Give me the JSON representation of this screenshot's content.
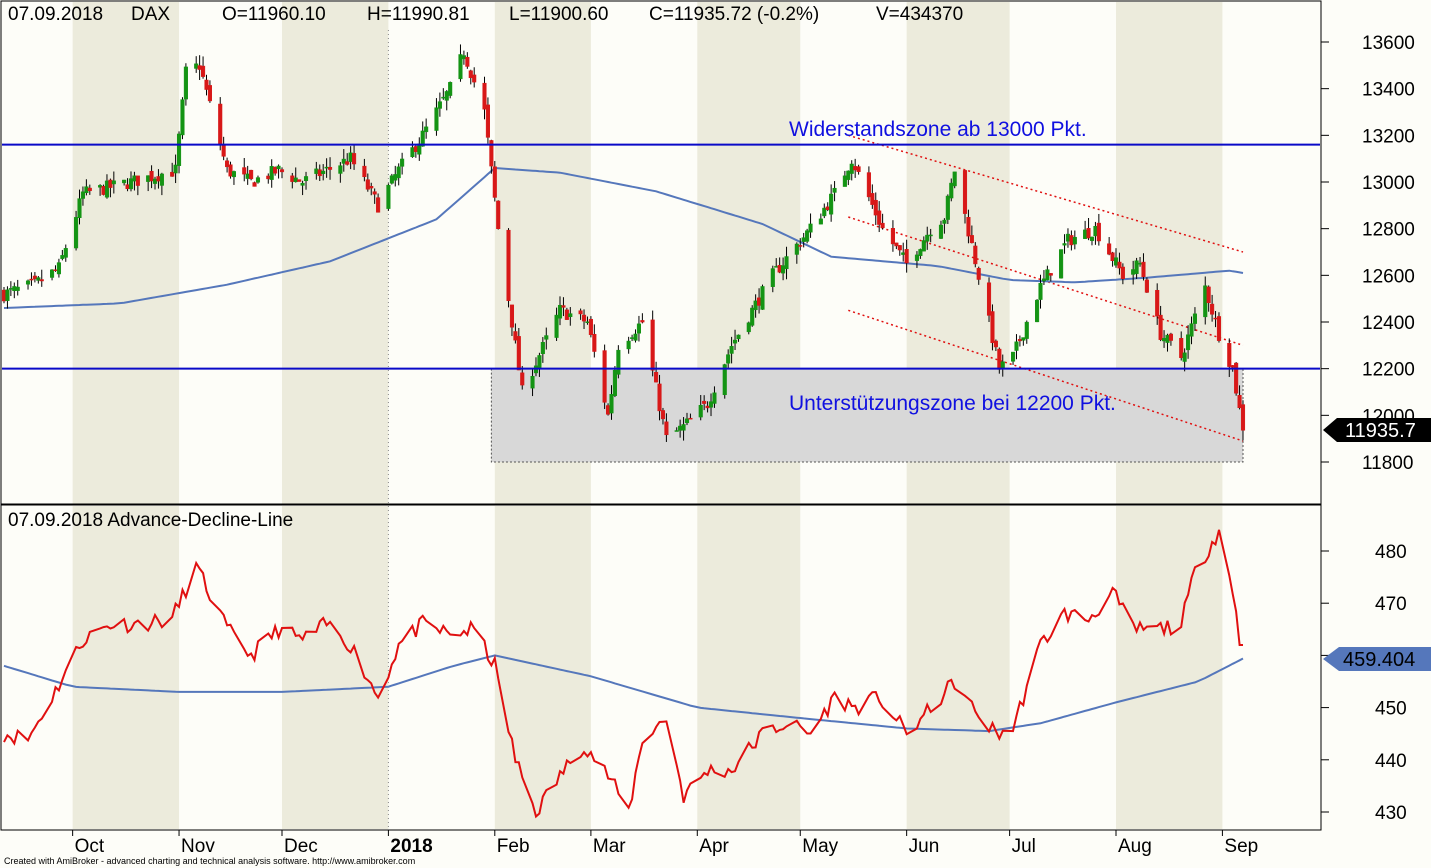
{
  "panel_top": {
    "header_date": "07.09.2018",
    "header_symbol": "DAX",
    "open": "O=11960.10",
    "high": "H=11990.81",
    "low": "L=11900.60",
    "close": "C=11935.72 (-0.2%)",
    "volume": "V=434370",
    "last_tag": "11935.7",
    "annotation_resistance": "Widerstandszone ab 13000 Pkt.",
    "annotation_support": "Unterstützungszone bei 12200 Pkt."
  },
  "panel_bottom": {
    "header": "07.09.2018 Advance-Decline-Line",
    "last_tag": "459.404"
  },
  "x_axis": {
    "labels": [
      "Oct",
      "Nov",
      "Dec",
      "2018",
      "Feb",
      "Mar",
      "Apr",
      "May",
      "Jun",
      "Jul",
      "Aug",
      "Sep"
    ]
  },
  "credit": "Created with AmiBroker - advanced charting and technical analysis software. http://www.amibroker.com",
  "colors": {
    "background": "#fdfdf8",
    "band": "#ecebdc",
    "up": "#149414",
    "down": "#d81818",
    "ma": "#5577bb",
    "adl": "#e01010",
    "level": "#0a0ac8",
    "channel": "#e01010",
    "support_zone": "#d8d8d8"
  },
  "chart_data": [
    {
      "type": "candlestick",
      "title": "DAX",
      "y_ticks": [
        11800,
        12000,
        12200,
        12400,
        12600,
        12800,
        13000,
        13200,
        13400,
        13600
      ],
      "ylim": [
        11620,
        13720
      ],
      "x_start": "2017-09-11",
      "x_end": "2018-09-07",
      "horizontal_levels": [
        13160,
        12200
      ],
      "support_zone": {
        "x_from": "2018-01-31",
        "x_to": "2018-09-07",
        "y_from": 11800,
        "y_to": 12200
      },
      "channel_lines": [
        {
          "x0": "2018-05-15",
          "y0": 13200,
          "x1": "2018-09-07",
          "y1": 12700
        },
        {
          "x0": "2018-05-15",
          "y0": 12850,
          "x1": "2018-09-07",
          "y1": 12300
        },
        {
          "x0": "2018-05-15",
          "y0": 12450,
          "x1": "2018-09-07",
          "y1": 11890
        }
      ],
      "close_anchors": [
        [
          "2017-09-11",
          12520
        ],
        [
          "2017-09-20",
          12560
        ],
        [
          "2017-09-27",
          12630
        ],
        [
          "2017-10-04",
          12950
        ],
        [
          "2017-10-18",
          13000
        ],
        [
          "2017-10-31",
          13050
        ],
        [
          "2017-11-03",
          13470
        ],
        [
          "2017-11-07",
          13500
        ],
        [
          "2017-11-15",
          13050
        ],
        [
          "2017-11-22",
          13000
        ],
        [
          "2017-11-30",
          13050
        ],
        [
          "2017-12-07",
          13000
        ],
        [
          "2017-12-14",
          13050
        ],
        [
          "2017-12-21",
          13100
        ],
        [
          "2017-12-29",
          12900
        ],
        [
          "2018-01-04",
          13050
        ],
        [
          "2018-01-11",
          13200
        ],
        [
          "2018-01-19",
          13400
        ],
        [
          "2018-01-23",
          13560
        ],
        [
          "2018-01-29",
          13300
        ],
        [
          "2018-02-02",
          12800
        ],
        [
          "2018-02-06",
          12400
        ],
        [
          "2018-02-09",
          12100
        ],
        [
          "2018-02-20",
          12450
        ],
        [
          "2018-02-28",
          12400
        ],
        [
          "2018-03-06",
          12000
        ],
        [
          "2018-03-09",
          12300
        ],
        [
          "2018-03-16",
          12400
        ],
        [
          "2018-03-23",
          11900
        ],
        [
          "2018-03-28",
          11950
        ],
        [
          "2018-04-04",
          12050
        ],
        [
          "2018-04-11",
          12300
        ],
        [
          "2018-04-23",
          12600
        ],
        [
          "2018-05-04",
          12800
        ],
        [
          "2018-05-11",
          12950
        ],
        [
          "2018-05-16",
          13100
        ],
        [
          "2018-05-25",
          12800
        ],
        [
          "2018-06-01",
          12650
        ],
        [
          "2018-06-08",
          12800
        ],
        [
          "2018-06-12",
          12850
        ],
        [
          "2018-06-15",
          13050
        ],
        [
          "2018-06-22",
          12600
        ],
        [
          "2018-06-28",
          12200
        ],
        [
          "2018-07-02",
          12250
        ],
        [
          "2018-07-10",
          12550
        ],
        [
          "2018-07-18",
          12750
        ],
        [
          "2018-07-26",
          12800
        ],
        [
          "2018-08-03",
          12600
        ],
        [
          "2018-08-08",
          12650
        ],
        [
          "2018-08-14",
          12350
        ],
        [
          "2018-08-20",
          12250
        ],
        [
          "2018-08-27",
          12550
        ],
        [
          "2018-08-31",
          12350
        ],
        [
          "2018-09-04",
          12200
        ],
        [
          "2018-09-07",
          11936
        ]
      ],
      "ma_anchors": [
        [
          "2017-09-11",
          12460
        ],
        [
          "2017-10-15",
          12480
        ],
        [
          "2017-11-15",
          12560
        ],
        [
          "2017-12-15",
          12660
        ],
        [
          "2018-01-15",
          12840
        ],
        [
          "2018-02-01",
          13060
        ],
        [
          "2018-02-20",
          13040
        ],
        [
          "2018-03-20",
          12960
        ],
        [
          "2018-04-20",
          12820
        ],
        [
          "2018-05-10",
          12680
        ],
        [
          "2018-06-10",
          12640
        ],
        [
          "2018-07-01",
          12580
        ],
        [
          "2018-07-20",
          12570
        ],
        [
          "2018-08-10",
          12590
        ],
        [
          "2018-09-03",
          12620
        ],
        [
          "2018-09-07",
          12610
        ]
      ]
    },
    {
      "type": "line",
      "title": "Advance-Decline-Line",
      "y_ticks": [
        430,
        440,
        450,
        460,
        470,
        480
      ],
      "ylim": [
        426,
        490
      ],
      "series": [
        {
          "values_anchors": [
            [
              "2017-09-11",
              445
            ],
            [
              "2017-09-18",
              444
            ],
            [
              "2017-09-25",
              452
            ],
            [
              "2017-10-04",
              463
            ],
            [
              "2017-10-12",
              466
            ],
            [
              "2017-10-20",
              466
            ],
            [
              "2017-10-30",
              467
            ],
            [
              "2017-11-06",
              477
            ],
            [
              "2017-11-15",
              465
            ],
            [
              "2017-11-22",
              460
            ],
            [
              "2017-11-30",
              465
            ],
            [
              "2017-12-07",
              463
            ],
            [
              "2017-12-14",
              466
            ],
            [
              "2017-12-21",
              462
            ],
            [
              "2017-12-29",
              452
            ],
            [
              "2018-01-04",
              462
            ],
            [
              "2018-01-11",
              466
            ],
            [
              "2018-01-19",
              464
            ],
            [
              "2018-01-26",
              465
            ],
            [
              "2018-02-01",
              458
            ],
            [
              "2018-02-07",
              440
            ],
            [
              "2018-02-13",
              430
            ],
            [
              "2018-02-20",
              437
            ],
            [
              "2018-02-27",
              443
            ],
            [
              "2018-03-06",
              437
            ],
            [
              "2018-03-12",
              430
            ],
            [
              "2018-03-16",
              444
            ],
            [
              "2018-03-23",
              448
            ],
            [
              "2018-03-28",
              433
            ],
            [
              "2018-04-04",
              438
            ],
            [
              "2018-04-11",
              438
            ],
            [
              "2018-04-20",
              445
            ],
            [
              "2018-04-27",
              447
            ],
            [
              "2018-05-04",
              445
            ],
            [
              "2018-05-11",
              452
            ],
            [
              "2018-05-17",
              450
            ],
            [
              "2018-05-24",
              452
            ],
            [
              "2018-06-01",
              445
            ],
            [
              "2018-06-07",
              449
            ],
            [
              "2018-06-15",
              455
            ],
            [
              "2018-06-20",
              450
            ],
            [
              "2018-06-27",
              445
            ],
            [
              "2018-07-02",
              446
            ],
            [
              "2018-07-10",
              462
            ],
            [
              "2018-07-17",
              468
            ],
            [
              "2018-07-24",
              467
            ],
            [
              "2018-07-31",
              472
            ],
            [
              "2018-08-06",
              465
            ],
            [
              "2018-08-13",
              465
            ],
            [
              "2018-08-20",
              466
            ],
            [
              "2018-08-24",
              476
            ],
            [
              "2018-08-31",
              484
            ],
            [
              "2018-09-03",
              475
            ],
            [
              "2018-09-07",
              462
            ]
          ]
        },
        {
          "values_anchors": [
            [
              "2017-09-11",
              458
            ],
            [
              "2017-10-01",
              454
            ],
            [
              "2017-11-01",
              453
            ],
            [
              "2017-12-01",
              453
            ],
            [
              "2018-01-01",
              454
            ],
            [
              "2018-01-20",
              458
            ],
            [
              "2018-02-01",
              460
            ],
            [
              "2018-03-01",
              456
            ],
            [
              "2018-04-01",
              450
            ],
            [
              "2018-05-01",
              448
            ],
            [
              "2018-06-01",
              446
            ],
            [
              "2018-06-25",
              445.5
            ],
            [
              "2018-07-10",
              447
            ],
            [
              "2018-08-01",
              451
            ],
            [
              "2018-08-25",
              455
            ],
            [
              "2018-09-07",
              459.4
            ]
          ]
        }
      ]
    }
  ]
}
